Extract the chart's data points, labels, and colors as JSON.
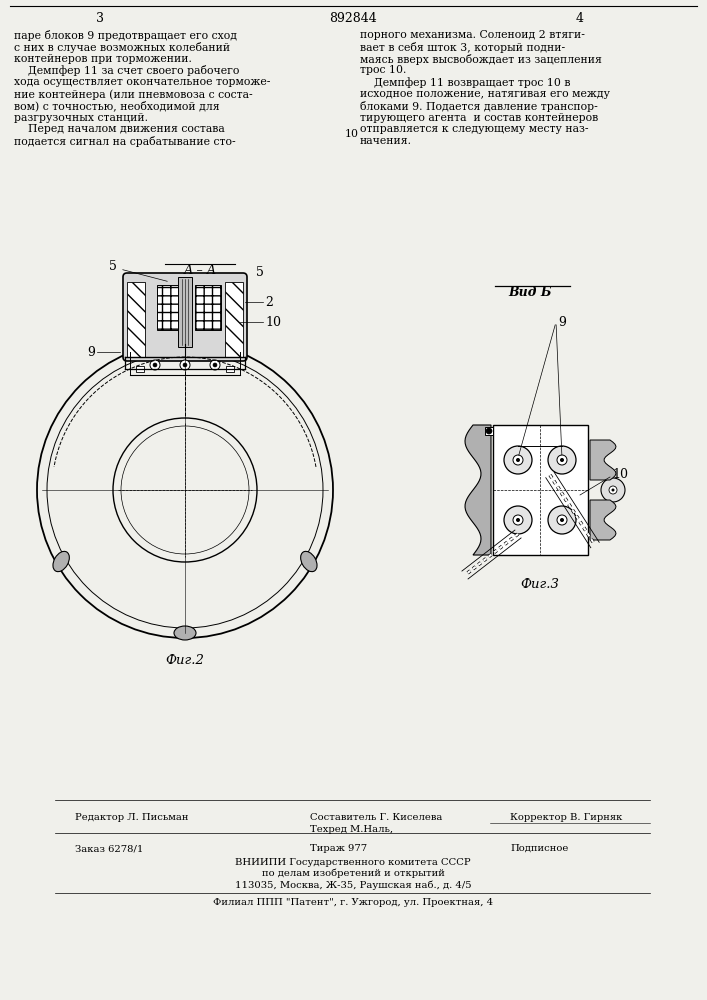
{
  "bg_color": "#f0f0eb",
  "patent_number": "892844",
  "col1_header": "3",
  "col2_header": "4",
  "col1_text_lines": [
    "паре блоков 9 предотвращает его сход",
    "с них в случае возможных колебаний",
    "контейнеров при торможении.",
    "    Демпфер 11 за счет своего рабочего",
    "хода осуществляет окончательное торможе-",
    "ние контейнера (или пневмовоза с соста-",
    "вом) с точностью, необходимой для",
    "разгрузочных станций.",
    "    Перед началом движения состава",
    "подается сигнал на срабатывание сто-"
  ],
  "col2_text_lines": [
    "порного механизма. Соленоид 2 втяги-",
    "вает в себя шток 3, который подни-",
    "маясь вверх высвобождает из зацепления",
    "трос 10.",
    "    Демпфер 11 возвращает трос 10 в",
    "исходное положение, натягивая его между",
    "блоками 9. Подается давление транспор-",
    "тирующего агента  и состав контейнеров",
    "отправляется к следующему месту наз-",
    "начения."
  ],
  "line_number": "10",
  "aa_label": "А – А",
  "fig2_label": "Фиг.2",
  "fig3_label": "Фиг.3",
  "vid_b_label": "Вид Б",
  "label_5a": "5",
  "label_5b": "5",
  "label_2": "2",
  "label_9": "9",
  "label_10": "10",
  "label_9b": "9",
  "label_10b": "10",
  "bottom_sostavitel_label": "Составитель Г. Киселева",
  "bottom_editor": "Редактор Л. Письман",
  "bottom_techred": "Техред М.Наль,",
  "bottom_corrector": "Корректор В. Гирняк",
  "bottom_zakaz": "Заказ 6278/1",
  "bottom_tirazh": "Тираж 977",
  "bottom_podpisnoe": "Подписное",
  "bottom_org1": "ВНИИПИ Государственного комитета СССР",
  "bottom_org2": "по делам изобретений и открытий",
  "bottom_address": "113035, Москва, Ж-35, Раушская наб., д. 4/5",
  "bottom_filial": "Филиал ППП \"Патент\", г. Ужгород, ул. Проектная, 4"
}
